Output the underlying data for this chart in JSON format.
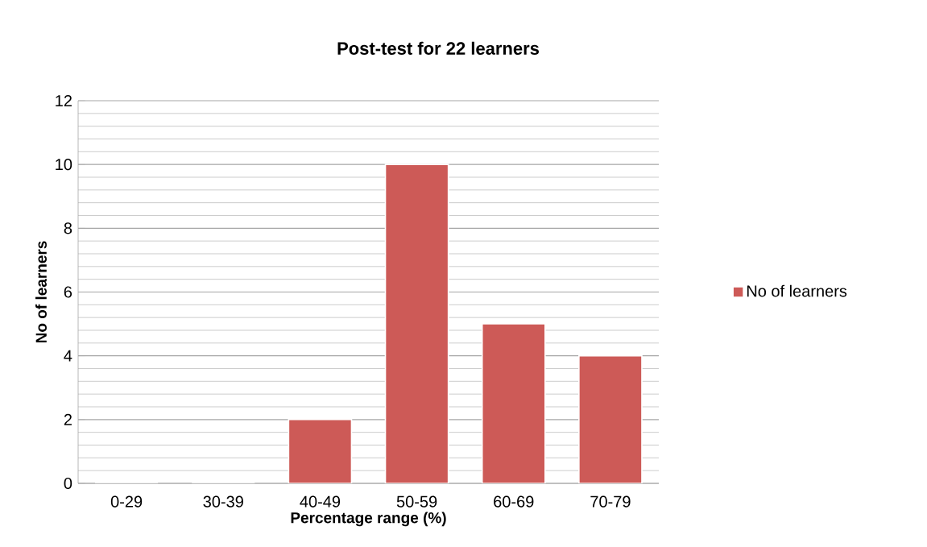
{
  "chart_data": {
    "type": "bar",
    "title": "Post-test for 22 learners",
    "xlabel": "Percentage range (%)",
    "ylabel": "No of learners",
    "categories": [
      "0-29",
      "30-39",
      "40-49",
      "50-59",
      "60-69",
      "70-79"
    ],
    "series": [
      {
        "name": "No of learners",
        "color": "#cd5a57",
        "values": [
          0,
          0,
          2,
          10,
          5,
          4
        ]
      }
    ],
    "ylim": [
      0,
      12
    ],
    "yticks": [
      0,
      2,
      4,
      6,
      8,
      10,
      12
    ],
    "grid": "y",
    "legend": "right"
  }
}
